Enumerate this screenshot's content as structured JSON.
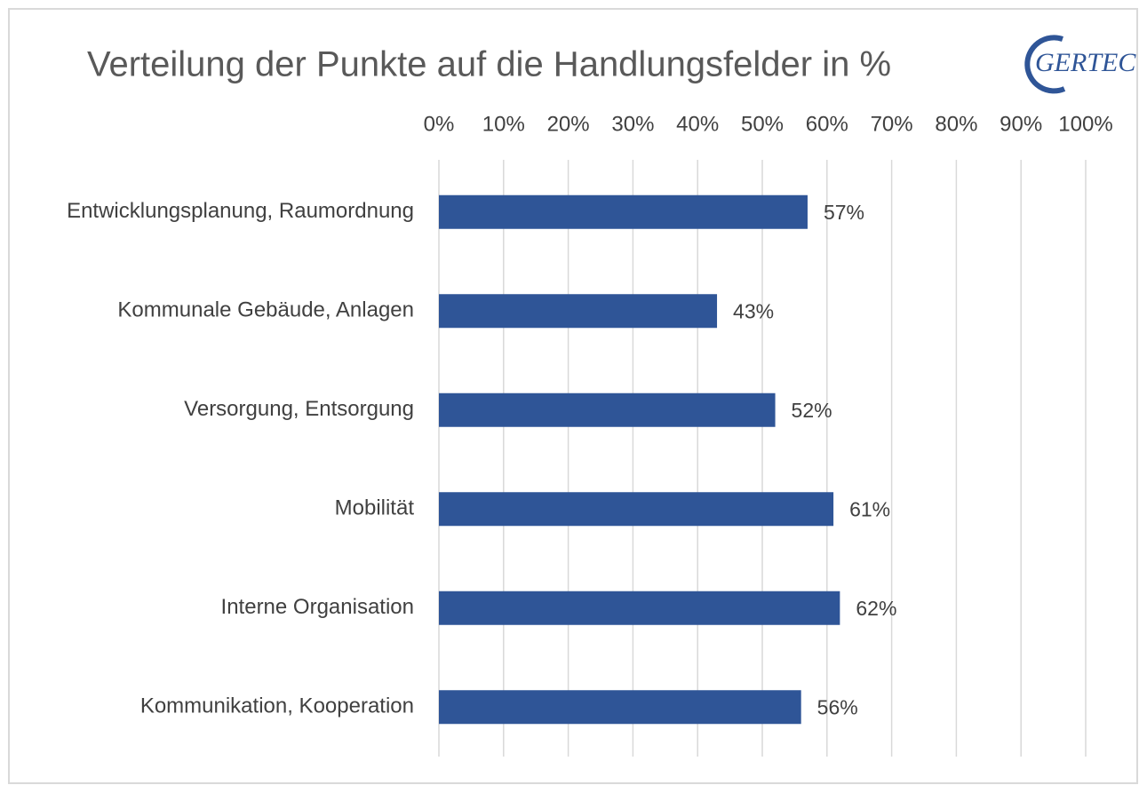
{
  "chart_data": {
    "type": "bar",
    "orientation": "horizontal",
    "title": "Verteilung der Punkte auf die Handlungsfelder in %",
    "logo": "GERTEC",
    "categories": [
      "Entwicklungsplanung, Raumordnung",
      "Kommunale Gebäude, Anlagen",
      "Versorgung, Entsorgung",
      "Mobilität",
      "Interne Organisation",
      "Kommunikation, Kooperation"
    ],
    "values": [
      57,
      43,
      52,
      61,
      62,
      56
    ],
    "value_labels": [
      "57%",
      "43%",
      "52%",
      "61%",
      "62%",
      "56%"
    ],
    "color": "#2f5597",
    "xlim": [
      0,
      100
    ],
    "xticks": [
      {
        "value": 0,
        "label": "0%"
      },
      {
        "value": 10,
        "label": "10%"
      },
      {
        "value": 20,
        "label": "20%"
      },
      {
        "value": 30,
        "label": "30%"
      },
      {
        "value": 40,
        "label": "40%"
      },
      {
        "value": 50,
        "label": "50%"
      },
      {
        "value": 60,
        "label": "60%"
      },
      {
        "value": 70,
        "label": "70%"
      },
      {
        "value": 80,
        "label": "80%"
      },
      {
        "value": 90,
        "label": "90%"
      },
      {
        "value": 100,
        "label": "100%"
      }
    ],
    "grid": true
  }
}
